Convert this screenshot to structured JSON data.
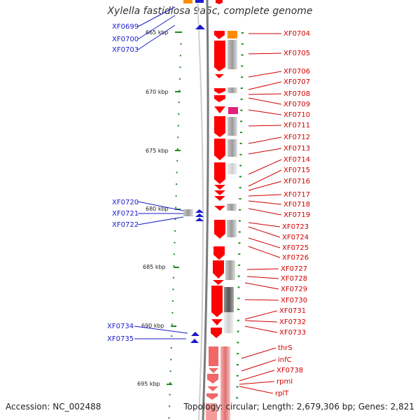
{
  "title": "Xylella fastidiosa 9a5c, complete genome",
  "footer": {
    "accession": "Accession: NC_002488",
    "summary": "Topology: circular; Length: 2,679,306 bp; Genes: 2,821"
  },
  "colors": {
    "forward_gene": "#ff0000",
    "pale_gene": "#f08080",
    "reverse_gene": "#1a1acc",
    "label_red": "#d00000",
    "label_blue": "#1a1acc",
    "tick_green": "#1f8a1f",
    "backbone": "#808080",
    "accent_orange": "#ff8c00",
    "accent_magenta": "#e0207a"
  },
  "scale_labels": [
    "665 kbp",
    "670 kbp",
    "675 kbp",
    "680 kbp",
    "685 kbp",
    "690 kbp",
    "695 kbp"
  ],
  "left_labels": [
    "XF0699",
    "XF0700",
    "XF0703",
    "XF0720",
    "XF0721",
    "XF0722",
    "XF0734",
    "XF0735"
  ],
  "right_labels": [
    "XF0704",
    "XF0705",
    "XF0706",
    "XF0707",
    "XF0708",
    "XF0709",
    "XF0710",
    "XF0711",
    "XF0712",
    "XF0713",
    "XF0714",
    "XF0715",
    "XF0716",
    "XF0717",
    "XF0718",
    "XF0719",
    "XF0723",
    "XF0724",
    "XF0725",
    "XF0726",
    "XF0727",
    "XF0728",
    "XF0729",
    "XF0730",
    "XF0731",
    "XF0732",
    "XF0733",
    "thrS",
    "infC",
    "XF0738",
    "rpmI",
    "rplT"
  ]
}
